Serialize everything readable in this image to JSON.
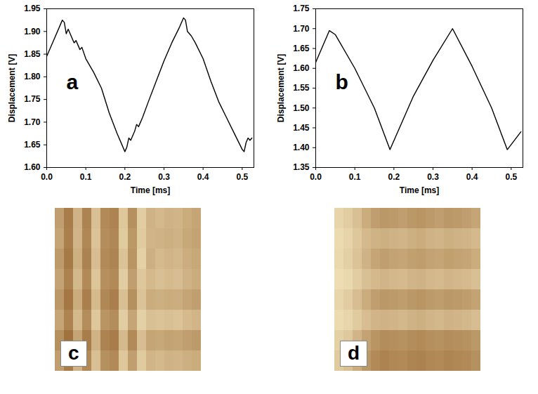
{
  "chart_data": [
    {
      "type": "line",
      "label": "a",
      "xlabel": "Time [ms]",
      "ylabel": "Displacement [V]",
      "color": "#000000",
      "xlim": [
        0,
        0.53
      ],
      "xticks": [
        {
          "value": 0,
          "label": "0.0"
        },
        0.1,
        0.2,
        0.3,
        0.4,
        0.5
      ],
      "ylim": [
        1.6,
        1.95
      ],
      "yticks": [
        {
          "value": 1.6,
          "label": "1.60"
        },
        {
          "value": 1.65,
          "label": "1.65"
        },
        {
          "value": 1.7,
          "label": "1.70"
        },
        {
          "value": 1.75,
          "label": "1.75"
        },
        {
          "value": 1.8,
          "label": "1.80"
        },
        {
          "value": 1.85,
          "label": "1.85"
        },
        {
          "value": 1.9,
          "label": "1.90"
        },
        {
          "value": 1.95,
          "label": "1.95"
        }
      ],
      "x": [
        0,
        0.02,
        0.04,
        0.045,
        0.05,
        0.055,
        0.065,
        0.07,
        0.075,
        0.085,
        0.09,
        0.1,
        0.12,
        0.14,
        0.16,
        0.18,
        0.2,
        0.205,
        0.21,
        0.215,
        0.225,
        0.23,
        0.235,
        0.245,
        0.26,
        0.28,
        0.3,
        0.32,
        0.34,
        0.35,
        0.355,
        0.36,
        0.37,
        0.38,
        0.4,
        0.42,
        0.44,
        0.46,
        0.48,
        0.5,
        0.505,
        0.51,
        0.515,
        0.52,
        0.525
      ],
      "values": [
        1.845,
        1.885,
        1.925,
        1.92,
        1.895,
        1.905,
        1.885,
        1.875,
        1.88,
        1.86,
        1.865,
        1.84,
        1.81,
        1.775,
        1.72,
        1.675,
        1.635,
        1.645,
        1.665,
        1.66,
        1.68,
        1.695,
        1.69,
        1.71,
        1.745,
        1.79,
        1.835,
        1.875,
        1.91,
        1.93,
        1.925,
        1.9,
        1.89,
        1.875,
        1.84,
        1.79,
        1.745,
        1.71,
        1.675,
        1.64,
        1.635,
        1.655,
        1.665,
        1.66,
        1.665
      ]
    },
    {
      "type": "line",
      "label": "b",
      "xlabel": "Time [ms]",
      "ylabel": "Displacement [V]",
      "color": "#000000",
      "xlim": [
        0,
        0.53
      ],
      "xticks": [
        {
          "value": 0,
          "label": "0.0"
        },
        0.1,
        0.2,
        0.3,
        0.4,
        0.5
      ],
      "ylim": [
        1.35,
        1.75
      ],
      "yticks": [
        {
          "value": 1.35,
          "label": "1.35"
        },
        {
          "value": 1.4,
          "label": "1.40"
        },
        {
          "value": 1.45,
          "label": "1.45"
        },
        {
          "value": 1.5,
          "label": "1.50"
        },
        {
          "value": 1.55,
          "label": "1.55"
        },
        {
          "value": 1.6,
          "label": "1.60"
        },
        {
          "value": 1.65,
          "label": "1.65"
        },
        {
          "value": 1.7,
          "label": "1.70"
        },
        {
          "value": 1.75,
          "label": "1.75"
        }
      ],
      "x": [
        0,
        0.035,
        0.05,
        0.1,
        0.15,
        0.19,
        0.25,
        0.3,
        0.35,
        0.4,
        0.45,
        0.49,
        0.525
      ],
      "values": [
        1.615,
        1.695,
        1.685,
        1.6,
        1.5,
        1.395,
        1.53,
        1.62,
        1.7,
        1.605,
        1.5,
        1.395,
        1.44
      ]
    },
    {
      "type": "heatmap",
      "label": "c",
      "tick_labels": false,
      "zlim": [
        0,
        1
      ],
      "cells": [
        [
          0.45,
          0.2,
          0.6,
          0.25,
          0.7,
          0.3,
          0.25,
          0.75,
          0.35,
          0.8,
          0.6,
          0.65,
          0.6,
          0.62,
          0.55,
          0.5
        ],
        [
          0.5,
          0.22,
          0.62,
          0.28,
          0.72,
          0.32,
          0.28,
          0.78,
          0.4,
          0.78,
          0.62,
          0.6,
          0.58,
          0.6,
          0.52,
          0.48
        ],
        [
          0.42,
          0.18,
          0.58,
          0.24,
          0.68,
          0.3,
          0.26,
          0.72,
          0.38,
          0.82,
          0.58,
          0.66,
          0.62,
          0.64,
          0.56,
          0.52
        ],
        [
          0.48,
          0.24,
          0.64,
          0.3,
          0.74,
          0.34,
          0.3,
          0.8,
          0.45,
          0.75,
          0.65,
          0.7,
          0.66,
          0.68,
          0.6,
          0.55
        ],
        [
          0.4,
          0.16,
          0.55,
          0.22,
          0.66,
          0.28,
          0.22,
          0.7,
          0.35,
          0.72,
          0.55,
          0.58,
          0.55,
          0.56,
          0.5,
          0.45
        ],
        [
          0.5,
          0.25,
          0.65,
          0.32,
          0.75,
          0.38,
          0.32,
          0.8,
          0.5,
          0.82,
          0.7,
          0.72,
          0.7,
          0.72,
          0.66,
          0.62
        ],
        [
          0.35,
          0.12,
          0.5,
          0.2,
          0.6,
          0.25,
          0.2,
          0.65,
          0.3,
          0.68,
          0.5,
          0.52,
          0.48,
          0.5,
          0.45,
          0.42
        ],
        [
          0.45,
          0.2,
          0.6,
          0.3,
          0.7,
          0.35,
          0.3,
          0.75,
          0.45,
          0.78,
          0.62,
          0.65,
          0.6,
          0.62,
          0.58,
          0.55
        ]
      ]
    },
    {
      "type": "heatmap",
      "label": "d",
      "tick_labels": false,
      "zlim": [
        0,
        1
      ],
      "cells": [
        [
          0.85,
          0.8,
          0.7,
          0.55,
          0.45,
          0.4,
          0.42,
          0.45,
          0.4,
          0.38,
          0.42,
          0.45,
          0.4,
          0.42,
          0.45,
          0.5
        ],
        [
          0.9,
          0.85,
          0.75,
          0.65,
          0.6,
          0.58,
          0.6,
          0.62,
          0.58,
          0.55,
          0.6,
          0.62,
          0.58,
          0.6,
          0.62,
          0.65
        ],
        [
          0.88,
          0.82,
          0.72,
          0.6,
          0.5,
          0.45,
          0.48,
          0.5,
          0.46,
          0.44,
          0.48,
          0.5,
          0.46,
          0.48,
          0.5,
          0.55
        ],
        [
          0.92,
          0.88,
          0.8,
          0.7,
          0.65,
          0.62,
          0.64,
          0.66,
          0.62,
          0.6,
          0.64,
          0.66,
          0.62,
          0.64,
          0.66,
          0.7
        ],
        [
          0.86,
          0.8,
          0.68,
          0.55,
          0.45,
          0.4,
          0.42,
          0.44,
          0.4,
          0.38,
          0.42,
          0.44,
          0.4,
          0.42,
          0.44,
          0.48
        ],
        [
          0.9,
          0.86,
          0.78,
          0.68,
          0.62,
          0.6,
          0.62,
          0.64,
          0.6,
          0.58,
          0.62,
          0.64,
          0.6,
          0.62,
          0.64,
          0.68
        ],
        [
          0.82,
          0.76,
          0.62,
          0.48,
          0.38,
          0.32,
          0.34,
          0.36,
          0.32,
          0.3,
          0.34,
          0.36,
          0.32,
          0.34,
          0.36,
          0.4
        ],
        [
          0.78,
          0.7,
          0.55,
          0.4,
          0.3,
          0.25,
          0.28,
          0.3,
          0.26,
          0.24,
          0.28,
          0.3,
          0.26,
          0.28,
          0.3,
          0.35
        ]
      ]
    }
  ]
}
